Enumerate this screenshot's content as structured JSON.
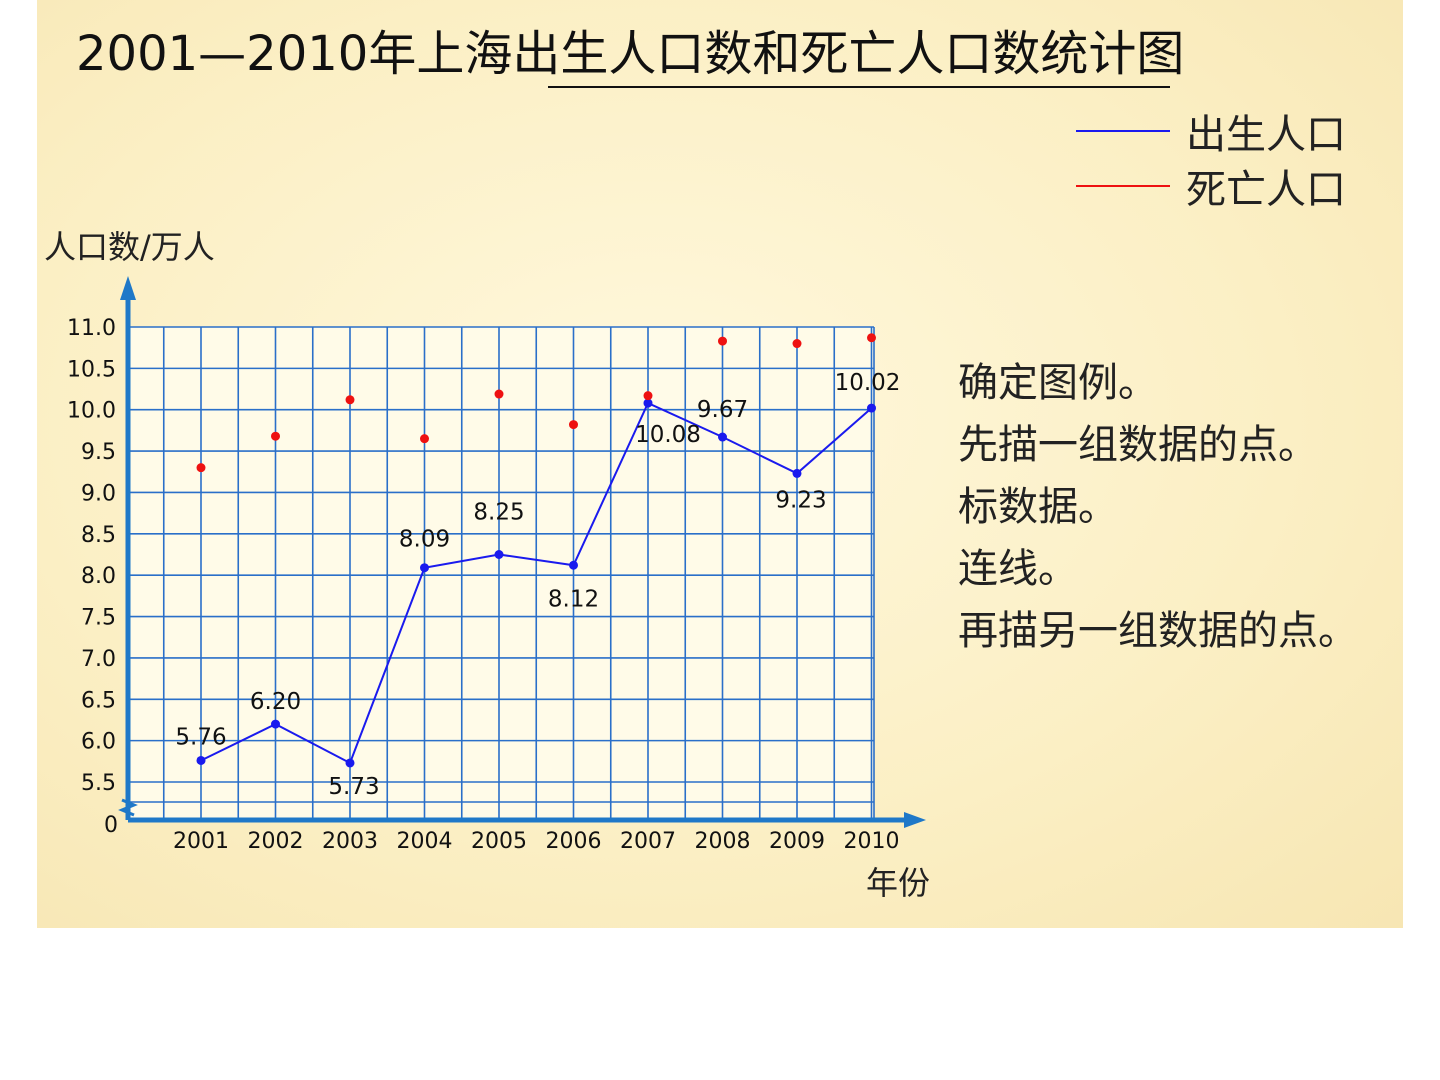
{
  "title": "2001—2010年上海出生人口数和死亡人口数统计图",
  "legend": [
    {
      "label": "出生人口",
      "color": "#1a1aee"
    },
    {
      "label": "死亡人口",
      "color": "#ee1111"
    }
  ],
  "steps": [
    "确定图例。",
    "先描一组数据的点。",
    "标数据。",
    "连线。",
    "再描另一组数据的点。"
  ],
  "colors": {
    "grid": "#2a6fc9",
    "axis": "#1f78c8",
    "background": "#fdf3cf"
  },
  "chart_data": {
    "type": "line",
    "title": "2001—2010年上海出生人口数和死亡人口数统计图",
    "xlabel": "年份",
    "ylabel": "人口数/万人",
    "categories": [
      "2001",
      "2002",
      "2003",
      "2004",
      "2005",
      "2006",
      "2007",
      "2008",
      "2009",
      "2010"
    ],
    "y_ticks": [
      "0",
      "5.5",
      "6.0",
      "6.5",
      "7.0",
      "7.5",
      "8.0",
      "8.5",
      "9.0",
      "9.5",
      "10.0",
      "10.5",
      "11.0"
    ],
    "ylim": [
      5.5,
      11.0
    ],
    "y_axis_break": true,
    "grid": true,
    "legend_position": "top-right",
    "series": [
      {
        "name": "出生人口",
        "color": "#1a1aee",
        "style": "line",
        "values": [
          5.76,
          6.2,
          5.73,
          8.09,
          8.25,
          8.12,
          10.08,
          9.67,
          9.23,
          10.02
        ],
        "labels": [
          "5.76",
          "6.20",
          "5.73",
          "8.09",
          "8.25",
          "8.12",
          "10.08",
          "9.67",
          "9.23",
          "10.02"
        ]
      },
      {
        "name": "死亡人口",
        "color": "#ee1111",
        "style": "points",
        "values": [
          9.3,
          9.68,
          10.12,
          9.65,
          10.19,
          9.82,
          10.17,
          10.83,
          10.8,
          10.87
        ]
      }
    ]
  }
}
